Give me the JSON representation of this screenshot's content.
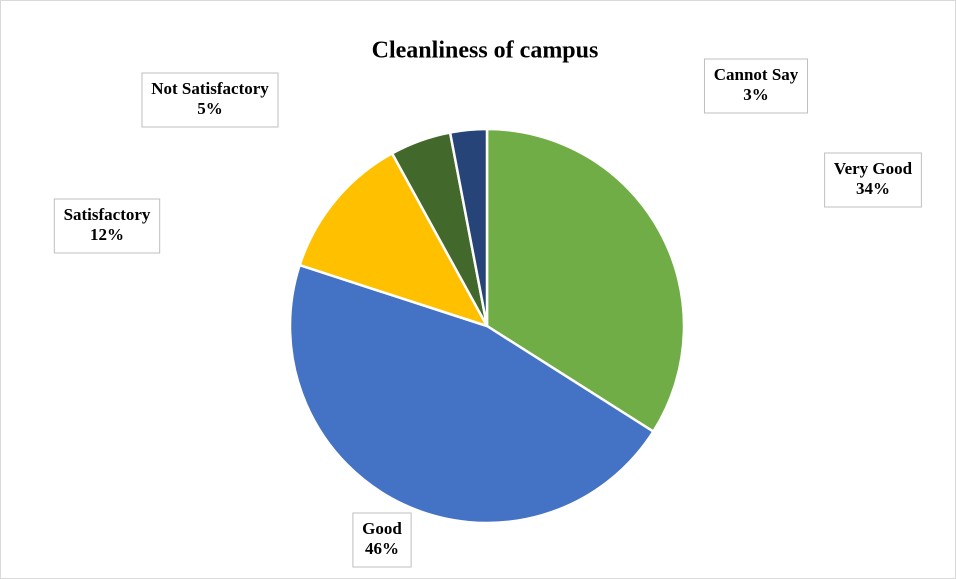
{
  "chart_data": {
    "type": "pie",
    "title": "Cleanliness of campus",
    "categories": [
      "Very Good",
      "Good",
      "Satisfactory",
      "Not Satisfactory",
      "Cannot Say"
    ],
    "values": [
      34,
      46,
      12,
      5,
      3
    ],
    "value_labels": [
      "34%",
      "46%",
      "12%",
      "5%",
      "3%"
    ],
    "colors": [
      "#70ad47",
      "#4472c4",
      "#ffc000",
      "#43682b",
      "#264478"
    ]
  }
}
